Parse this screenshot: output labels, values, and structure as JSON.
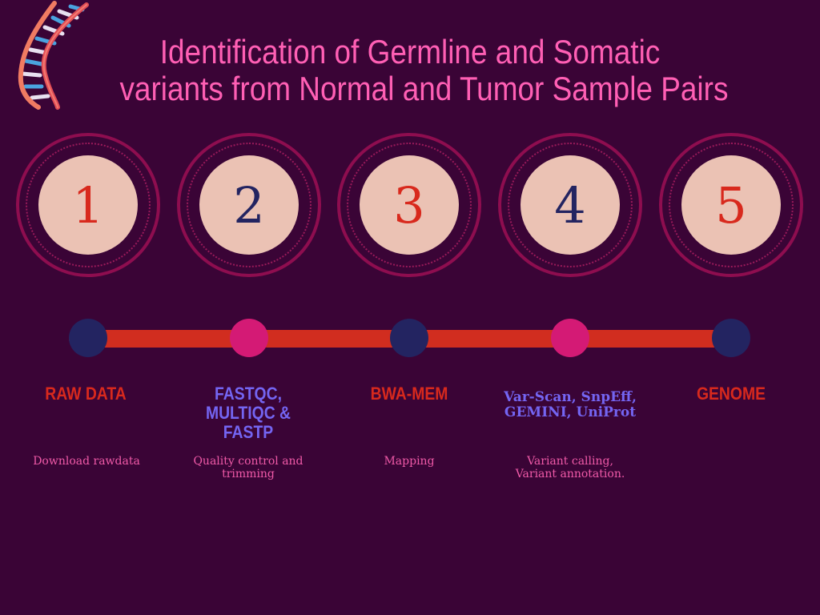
{
  "title": {
    "line1": "Identification of Germline and Somatic",
    "line2": "variants from Normal and Tumor Sample Pairs"
  },
  "icons": {
    "dna": "dna-helix-icon"
  },
  "colors": {
    "background": "#3a0436",
    "title": "#ff5fb4",
    "accent_red": "#d8291d",
    "accent_violet": "#7465f2",
    "node_blue": "#232461",
    "node_pink": "#d41a75",
    "circle_fill": "#ebc2b4"
  },
  "steps": [
    {
      "number": "1",
      "tool_line1": "RAW DATA",
      "tool_line2": "",
      "tool_line3": "",
      "desc_line1": "Download rawdata",
      "desc_line2": ""
    },
    {
      "number": "2",
      "tool_line1": "FASTQC,",
      "tool_line2": "MULTIQC &",
      "tool_line3": "FASTP",
      "desc_line1": "Quality control and",
      "desc_line2": "trimming"
    },
    {
      "number": "3",
      "tool_line1": "BWA-MEM",
      "tool_line2": "",
      "tool_line3": "",
      "desc_line1": "Mapping",
      "desc_line2": ""
    },
    {
      "number": "4",
      "tool_line1": "Var-Scan, SnpEff,",
      "tool_line2": "GEMINI, UniProt",
      "tool_line3": "",
      "desc_line1": "Variant calling,",
      "desc_line2": "Variant annotation."
    },
    {
      "number": "5",
      "tool_line1": "GENOME",
      "tool_line2": "",
      "tool_line3": "",
      "desc_line1": "",
      "desc_line2": ""
    }
  ]
}
